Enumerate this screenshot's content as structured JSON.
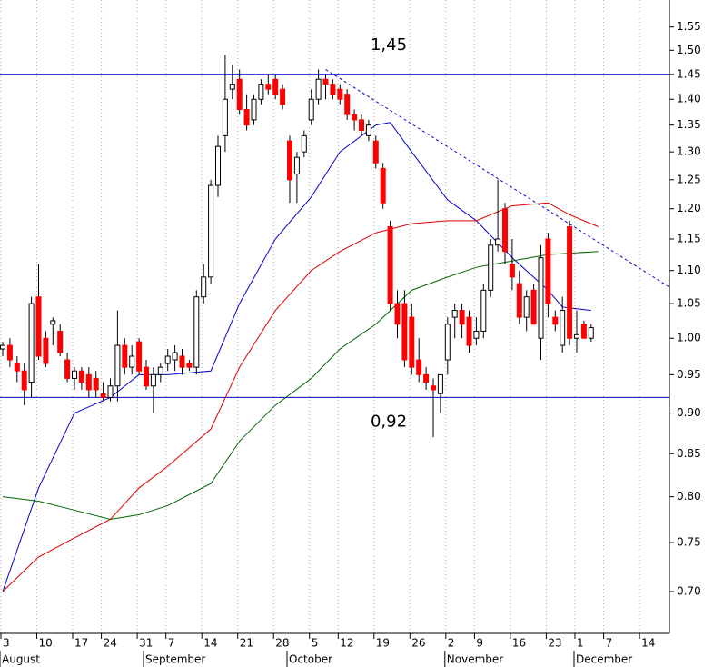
{
  "chart_data": {
    "type": "candlestick",
    "log_scale": true,
    "grid": true,
    "up_color": "#ffffff",
    "down_color": "#ff0000",
    "wick_color": "#000000",
    "ylim": [
      0.66,
      1.61
    ],
    "yticks": [
      {
        "value": 0.7,
        "label": "0.70"
      },
      0.75,
      {
        "value": 0.8,
        "label": "0.80"
      },
      0.85,
      {
        "value": 0.9,
        "label": "0.90"
      },
      0.95,
      {
        "value": 1,
        "label": "1.00"
      },
      1.05,
      {
        "value": 1.1,
        "label": "1.10"
      },
      1.15,
      {
        "value": 1.2,
        "label": "1.20"
      },
      1.25,
      {
        "value": 1.3,
        "label": "1.30"
      },
      1.35,
      {
        "value": 1.4,
        "label": "1.40"
      },
      1.45,
      {
        "value": 1.5,
        "label": "1.50"
      },
      1.55
    ],
    "categories": [
      "3",
      null,
      null,
      null,
      null,
      "10",
      null,
      null,
      null,
      null,
      "17",
      null,
      null,
      null,
      "24",
      null,
      null,
      null,
      null,
      "31",
      null,
      null,
      null,
      "7",
      null,
      null,
      null,
      null,
      "14",
      null,
      null,
      null,
      null,
      "21",
      null,
      null,
      null,
      null,
      "28",
      null,
      null,
      null,
      null,
      "5",
      null,
      null,
      null,
      "12",
      null,
      null,
      null,
      null,
      "19",
      null,
      null,
      null,
      null,
      "26",
      null,
      null,
      null,
      null,
      "2",
      null,
      null,
      null,
      "9",
      null,
      null,
      null,
      null,
      "16",
      null,
      null,
      null,
      null,
      "23",
      null,
      null,
      null,
      "1",
      null,
      null,
      null,
      "7",
      null,
      null,
      null,
      null,
      "14",
      null,
      null,
      null
    ],
    "months": [
      "August",
      null,
      null,
      null,
      null,
      null,
      null,
      null,
      null,
      null,
      null,
      null,
      null,
      null,
      null,
      null,
      null,
      null,
      null,
      null,
      "September",
      null,
      null,
      null,
      null,
      null,
      null,
      null,
      null,
      null,
      null,
      null,
      null,
      null,
      null,
      null,
      null,
      null,
      null,
      null,
      "October",
      null,
      null,
      null,
      null,
      null,
      null,
      null,
      null,
      null,
      null,
      null,
      null,
      null,
      null,
      null,
      null,
      null,
      null,
      null,
      null,
      null,
      "November",
      null,
      null,
      null,
      null,
      null,
      null,
      null,
      null,
      null,
      null,
      null,
      null,
      null,
      null,
      null,
      null,
      null,
      "December",
      null,
      null,
      null,
      null,
      null,
      null,
      null,
      null,
      null,
      null,
      null,
      null
    ],
    "open": [
      0.985,
      0.99,
      0.965,
      0.955,
      0.94,
      1.06,
      1.0,
      1.02,
      1.01,
      0.97,
      0.945,
      0.955,
      0.95,
      0.945,
      0.925,
      0.92,
      0.935,
      0.99,
      0.96,
      0.995,
      0.96,
      0.935,
      0.95,
      0.965,
      0.97,
      0.975,
      0.965,
      0.96,
      1.06,
      1.09,
      1.24,
      1.33,
      1.42,
      1.44,
      1.38,
      1.36,
      1.4,
      1.43,
      1.44,
      1.42,
      1.32,
      1.26,
      1.3,
      1.36,
      1.4,
      1.44,
      1.43,
      1.42,
      1.41,
      1.37,
      1.36,
      1.33,
      1.32,
      1.27,
      1.17,
      1.05,
      1.05,
      1.03,
      0.97,
      0.95,
      0.935,
      0.925,
      0.97,
      1.03,
      1.04,
      1.03,
      1.0,
      1.01,
      1.07,
      1.14,
      1.2,
      1.11,
      1.08,
      1.03,
      1.07,
      1.0,
      1.15,
      1.03,
      0.99,
      1.17,
      1.0,
      1.02,
      1.0,
      null,
      null,
      null,
      null,
      null,
      null,
      null,
      null,
      null,
      null
    ],
    "high": [
      0.995,
      1.0,
      0.975,
      0.965,
      1.06,
      1.11,
      1.01,
      1.03,
      1.02,
      0.98,
      0.96,
      0.96,
      0.96,
      0.955,
      0.94,
      0.945,
      1.04,
      1.0,
      0.99,
      1.0,
      0.97,
      0.96,
      0.965,
      0.985,
      0.99,
      0.985,
      0.97,
      1.07,
      1.11,
      1.25,
      1.33,
      1.49,
      1.47,
      1.46,
      1.41,
      1.41,
      1.44,
      1.45,
      1.45,
      1.43,
      1.33,
      1.3,
      1.34,
      1.42,
      1.46,
      1.45,
      1.44,
      1.43,
      1.42,
      1.38,
      1.37,
      1.36,
      1.33,
      1.28,
      1.18,
      1.07,
      1.07,
      1.05,
      1.0,
      0.96,
      0.945,
      0.95,
      1.03,
      1.05,
      1.05,
      1.04,
      1.03,
      1.08,
      1.15,
      1.25,
      1.21,
      1.15,
      1.1,
      1.07,
      1.08,
      1.14,
      1.16,
      1.04,
      1.06,
      1.18,
      1.04,
      1.025,
      1.02,
      null,
      null,
      null,
      null,
      null,
      null,
      null,
      null,
      null,
      null
    ],
    "low": [
      0.975,
      0.96,
      0.94,
      0.91,
      0.92,
      0.97,
      0.96,
      0.99,
      0.975,
      0.94,
      0.93,
      0.93,
      0.92,
      0.92,
      0.915,
      0.915,
      0.915,
      0.95,
      0.95,
      0.95,
      0.93,
      0.9,
      0.94,
      0.955,
      0.955,
      0.95,
      0.955,
      0.95,
      1.05,
      1.08,
      1.22,
      1.3,
      1.4,
      1.37,
      1.34,
      1.35,
      1.39,
      1.41,
      1.4,
      1.38,
      1.21,
      1.21,
      1.29,
      1.35,
      1.39,
      1.4,
      1.4,
      1.39,
      1.36,
      1.34,
      1.33,
      1.32,
      1.27,
      1.2,
      1.04,
      1.0,
      0.96,
      0.95,
      0.94,
      0.93,
      0.87,
      0.9,
      0.95,
      1.0,
      1.0,
      0.98,
      0.99,
      1.0,
      1.06,
      1.13,
      1.11,
      1.07,
      1.02,
      1.01,
      1.02,
      0.97,
      1.03,
      1.01,
      0.98,
      0.99,
      0.98,
      1.0,
      0.995,
      null,
      null,
      null,
      null,
      null,
      null,
      null,
      null,
      null,
      null
    ],
    "close": [
      0.99,
      0.97,
      0.955,
      0.93,
      1.05,
      0.975,
      0.965,
      1.025,
      0.98,
      0.945,
      0.955,
      0.94,
      0.93,
      0.93,
      0.92,
      0.935,
      0.99,
      0.96,
      0.975,
      0.955,
      0.935,
      0.95,
      0.96,
      0.975,
      0.98,
      0.96,
      0.96,
      1.06,
      1.09,
      1.24,
      1.31,
      1.4,
      1.43,
      1.38,
      1.35,
      1.4,
      1.43,
      1.42,
      1.41,
      1.39,
      1.25,
      1.29,
      1.33,
      1.4,
      1.44,
      1.43,
      1.41,
      1.4,
      1.37,
      1.36,
      1.34,
      1.35,
      1.28,
      1.21,
      1.05,
      1.02,
      0.97,
      0.96,
      0.95,
      0.94,
      0.93,
      0.95,
      1.02,
      1.04,
      1.02,
      0.99,
      1.01,
      1.07,
      1.14,
      1.15,
      1.13,
      1.09,
      1.03,
      1.06,
      1.02,
      1.12,
      1.05,
      1.02,
      1.04,
      1.0,
      1.005,
      1.0,
      1.015,
      null,
      null,
      null,
      null,
      null,
      null,
      null,
      null,
      null,
      null
    ],
    "lines": [
      {
        "color": "#0000cc",
        "x": [
          0,
          5,
          10,
          15,
          19,
          23,
          29,
          33,
          38,
          43,
          47,
          52,
          54,
          57,
          62,
          66,
          71,
          76,
          78,
          82
        ],
        "values": [
          0.7,
          0.81,
          0.9,
          0.92,
          0.95,
          0.95,
          0.955,
          1.05,
          1.15,
          1.22,
          1.3,
          1.35,
          1.355,
          1.3,
          1.215,
          1.18,
          1.12,
          1.07,
          1.045,
          1.04
        ]
      },
      {
        "color": "#dd0000",
        "x": [
          0,
          5,
          10,
          15,
          19,
          23,
          29,
          33,
          38,
          43,
          47,
          52,
          57,
          62,
          66,
          71,
          76,
          79,
          83
        ],
        "values": [
          0.7,
          0.735,
          0.755,
          0.775,
          0.81,
          0.835,
          0.88,
          0.96,
          1.04,
          1.1,
          1.13,
          1.16,
          1.175,
          1.18,
          1.18,
          1.205,
          1.21,
          1.19,
          1.17
        ]
      },
      {
        "color": "#006600",
        "x": [
          0,
          5,
          10,
          15,
          19,
          23,
          29,
          33,
          38,
          43,
          47,
          52,
          57,
          62,
          66,
          71,
          76,
          83
        ],
        "values": [
          0.8,
          0.795,
          0.785,
          0.775,
          0.78,
          0.79,
          0.815,
          0.865,
          0.91,
          0.945,
          0.985,
          1.02,
          1.07,
          1.09,
          1.105,
          1.115,
          1.125,
          1.13
        ]
      }
    ],
    "trendline": {
      "color": "#0000cc",
      "dashed": true,
      "x": [
        45,
        93
      ],
      "values": [
        1.46,
        1.074
      ]
    },
    "level_color": "#0000cc",
    "levels": [
      {
        "value": 1.45,
        "label": "1,45"
      },
      {
        "value": 0.92,
        "label": "0,92"
      }
    ]
  }
}
